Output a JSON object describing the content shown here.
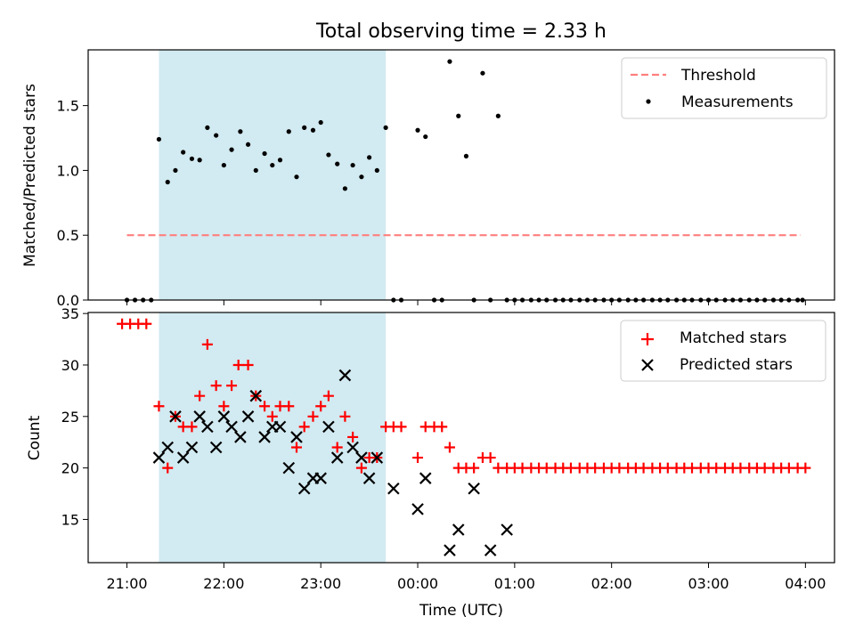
{
  "figure_title": "Total observing time = 2.33 h",
  "chart_data": [
    {
      "type": "scatter",
      "ylabel": "Matched/Predicted stars",
      "xlabel": "",
      "x_unit": "hours after 21:00 UTC",
      "xlim": [
        -0.4,
        7.3
      ],
      "ylim": [
        0,
        1.93
      ],
      "y_ticks": [
        "0.0",
        "0.5",
        "1.0",
        "1.5"
      ],
      "shaded_region": [
        0.33,
        2.67
      ],
      "shaded_color": "#add8e6",
      "threshold": {
        "name": "Threshold",
        "value": 0.5,
        "x": [
          0.0,
          6.95
        ],
        "color": "#ff7f7f"
      },
      "series": [
        {
          "name": "Measurements",
          "color": "#000000",
          "marker": "dot",
          "points": [
            [
              0.0,
              0
            ],
            [
              0.083,
              0
            ],
            [
              0.167,
              0
            ],
            [
              0.25,
              0
            ],
            [
              0.33,
              1.24
            ],
            [
              0.42,
              0.91
            ],
            [
              0.5,
              1.0
            ],
            [
              0.58,
              1.14
            ],
            [
              0.67,
              1.09
            ],
            [
              0.75,
              1.08
            ],
            [
              0.83,
              1.33
            ],
            [
              0.92,
              1.27
            ],
            [
              1.0,
              1.04
            ],
            [
              1.08,
              1.16
            ],
            [
              1.17,
              1.3
            ],
            [
              1.25,
              1.2
            ],
            [
              1.33,
              1.0
            ],
            [
              1.42,
              1.13
            ],
            [
              1.5,
              1.04
            ],
            [
              1.58,
              1.08
            ],
            [
              1.67,
              1.3
            ],
            [
              1.75,
              0.95
            ],
            [
              1.83,
              1.33
            ],
            [
              1.92,
              1.31
            ],
            [
              2.0,
              1.37
            ],
            [
              2.08,
              1.12
            ],
            [
              2.17,
              1.05
            ],
            [
              2.25,
              0.86
            ],
            [
              2.33,
              1.04
            ],
            [
              2.42,
              0.95
            ],
            [
              2.5,
              1.1
            ],
            [
              2.58,
              1.0
            ],
            [
              2.67,
              1.33
            ],
            [
              2.75,
              0
            ],
            [
              2.83,
              0
            ],
            [
              3.0,
              1.31
            ],
            [
              3.08,
              1.26
            ],
            [
              3.17,
              0
            ],
            [
              3.25,
              0
            ],
            [
              3.33,
              1.84
            ],
            [
              3.42,
              1.42
            ],
            [
              3.5,
              1.11
            ],
            [
              3.58,
              0
            ],
            [
              3.67,
              1.75
            ],
            [
              3.75,
              0
            ],
            [
              3.83,
              1.42
            ],
            [
              3.92,
              0
            ],
            [
              4.0,
              0
            ],
            [
              4.08,
              0
            ],
            [
              4.17,
              0
            ],
            [
              4.25,
              0
            ],
            [
              4.33,
              0
            ],
            [
              4.42,
              0
            ],
            [
              4.5,
              0
            ],
            [
              4.58,
              0
            ],
            [
              4.67,
              0
            ],
            [
              4.75,
              0
            ],
            [
              4.83,
              0
            ],
            [
              4.92,
              0
            ],
            [
              5.0,
              0
            ],
            [
              5.08,
              0
            ],
            [
              5.17,
              0
            ],
            [
              5.25,
              0
            ],
            [
              5.33,
              0
            ],
            [
              5.42,
              0
            ],
            [
              5.5,
              0
            ],
            [
              5.58,
              0
            ],
            [
              5.67,
              0
            ],
            [
              5.75,
              0
            ],
            [
              5.83,
              0
            ],
            [
              5.92,
              0
            ],
            [
              6.0,
              0
            ],
            [
              6.08,
              0
            ],
            [
              6.17,
              0
            ],
            [
              6.25,
              0
            ],
            [
              6.33,
              0
            ],
            [
              6.42,
              0
            ],
            [
              6.5,
              0
            ],
            [
              6.58,
              0
            ],
            [
              6.67,
              0
            ],
            [
              6.75,
              0
            ],
            [
              6.83,
              0
            ],
            [
              6.92,
              0
            ],
            [
              6.97,
              0
            ]
          ]
        }
      ],
      "legend": {
        "position": "top-right",
        "entries": [
          "Threshold",
          "Measurements"
        ]
      }
    },
    {
      "type": "scatter",
      "ylabel": "Count",
      "xlabel": "Time (UTC)",
      "x_unit": "hours after 21:00 UTC",
      "xlim": [
        -0.4,
        7.3
      ],
      "ylim": [
        10.8,
        35.1
      ],
      "y_ticks": [
        "15",
        "20",
        "25",
        "30",
        "35"
      ],
      "x_tick_labels": [
        "21:00",
        "22:00",
        "23:00",
        "00:00",
        "01:00",
        "02:00",
        "03:00",
        "04:00"
      ],
      "shaded_region": [
        0.33,
        2.67
      ],
      "shaded_color": "#add8e6",
      "series": [
        {
          "name": "Matched stars",
          "color": "#ff0000",
          "marker": "plus",
          "points": [
            [
              -0.05,
              34
            ],
            [
              0.033,
              34
            ],
            [
              0.117,
              34
            ],
            [
              0.2,
              34
            ],
            [
              0.33,
              26
            ],
            [
              0.42,
              20
            ],
            [
              0.5,
              25
            ],
            [
              0.58,
              24
            ],
            [
              0.67,
              24
            ],
            [
              0.75,
              27
            ],
            [
              0.83,
              32
            ],
            [
              0.92,
              28
            ],
            [
              1.0,
              26
            ],
            [
              1.08,
              28
            ],
            [
              1.15,
              30
            ],
            [
              1.25,
              30
            ],
            [
              1.33,
              27
            ],
            [
              1.42,
              26
            ],
            [
              1.5,
              25
            ],
            [
              1.58,
              26
            ],
            [
              1.67,
              26
            ],
            [
              1.75,
              22
            ],
            [
              1.83,
              24
            ],
            [
              1.92,
              25
            ],
            [
              2.0,
              26
            ],
            [
              2.08,
              27
            ],
            [
              2.17,
              22
            ],
            [
              2.25,
              25
            ],
            [
              2.33,
              23
            ],
            [
              2.42,
              20
            ],
            [
              2.5,
              21
            ],
            [
              2.58,
              21
            ],
            [
              2.67,
              24
            ],
            [
              2.75,
              24
            ],
            [
              2.83,
              24
            ],
            [
              3.0,
              21
            ],
            [
              3.08,
              24
            ],
            [
              3.17,
              24
            ],
            [
              3.25,
              24
            ],
            [
              3.33,
              22
            ],
            [
              3.42,
              20
            ],
            [
              3.5,
              20
            ],
            [
              3.58,
              20
            ],
            [
              3.67,
              21
            ],
            [
              3.75,
              21
            ],
            [
              3.83,
              20
            ],
            [
              3.92,
              20
            ],
            [
              4.0,
              20
            ],
            [
              4.08,
              20
            ],
            [
              4.17,
              20
            ],
            [
              4.25,
              20
            ],
            [
              4.33,
              20
            ],
            [
              4.42,
              20
            ],
            [
              4.5,
              20
            ],
            [
              4.58,
              20
            ],
            [
              4.67,
              20
            ],
            [
              4.75,
              20
            ],
            [
              4.83,
              20
            ],
            [
              4.92,
              20
            ],
            [
              5.0,
              20
            ],
            [
              5.08,
              20
            ],
            [
              5.17,
              20
            ],
            [
              5.25,
              20
            ],
            [
              5.33,
              20
            ],
            [
              5.42,
              20
            ],
            [
              5.5,
              20
            ],
            [
              5.58,
              20
            ],
            [
              5.67,
              20
            ],
            [
              5.75,
              20
            ],
            [
              5.83,
              20
            ],
            [
              5.92,
              20
            ],
            [
              6.0,
              20
            ],
            [
              6.08,
              20
            ],
            [
              6.17,
              20
            ],
            [
              6.25,
              20
            ],
            [
              6.33,
              20
            ],
            [
              6.42,
              20
            ],
            [
              6.5,
              20
            ],
            [
              6.58,
              20
            ],
            [
              6.67,
              20
            ],
            [
              6.75,
              20
            ],
            [
              6.83,
              20
            ],
            [
              6.92,
              20
            ],
            [
              7.0,
              20
            ]
          ]
        },
        {
          "name": "Predicted stars",
          "color": "#000000",
          "marker": "x",
          "points": [
            [
              0.33,
              21
            ],
            [
              0.42,
              22
            ],
            [
              0.5,
              25
            ],
            [
              0.58,
              21
            ],
            [
              0.67,
              22
            ],
            [
              0.75,
              25
            ],
            [
              0.83,
              24
            ],
            [
              0.92,
              22
            ],
            [
              1.0,
              25
            ],
            [
              1.08,
              24
            ],
            [
              1.17,
              23
            ],
            [
              1.25,
              25
            ],
            [
              1.33,
              27
            ],
            [
              1.42,
              23
            ],
            [
              1.5,
              24
            ],
            [
              1.58,
              24
            ],
            [
              1.67,
              20
            ],
            [
              1.75,
              23
            ],
            [
              1.83,
              18
            ],
            [
              1.92,
              19
            ],
            [
              2.0,
              19
            ],
            [
              2.08,
              24
            ],
            [
              2.17,
              21
            ],
            [
              2.25,
              29
            ],
            [
              2.33,
              22
            ],
            [
              2.42,
              21
            ],
            [
              2.5,
              19
            ],
            [
              2.58,
              21
            ],
            [
              2.75,
              18
            ],
            [
              3.0,
              16
            ],
            [
              3.08,
              19
            ],
            [
              3.33,
              12
            ],
            [
              3.42,
              14
            ],
            [
              3.58,
              18
            ],
            [
              3.75,
              12
            ],
            [
              3.92,
              14
            ]
          ]
        }
      ],
      "legend": {
        "position": "top-right",
        "entries": [
          "Matched stars",
          "Predicted stars"
        ]
      }
    }
  ]
}
